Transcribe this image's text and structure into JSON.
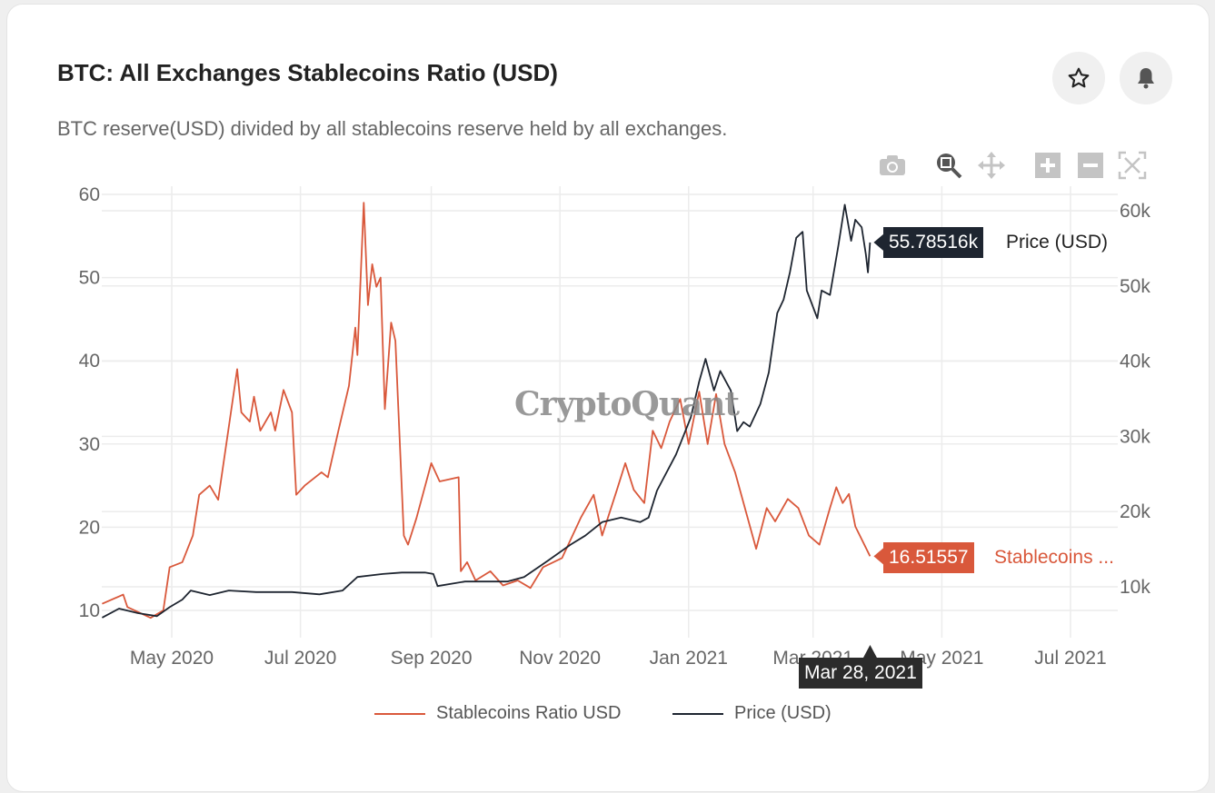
{
  "header": {
    "title": "BTC: All Exchanges Stablecoins Ratio (USD)",
    "subtitle": "BTC reserve(USD) divided by all stablecoins reserve held by all exchanges.",
    "favorite_icon": "star-icon",
    "alert_icon": "bell-icon"
  },
  "toolbar": {
    "items": [
      "camera-icon",
      "zoom-icon",
      "pan-icon",
      "zoom-in-icon",
      "zoom-out-icon",
      "autoscale-icon"
    ],
    "active": "zoom-icon"
  },
  "watermark": "CryptoQuant",
  "hover": {
    "date_label": "Mar 28, 2021",
    "price_value": "55.78516k",
    "price_name": "Price (USD)",
    "ratio_value": "16.51557",
    "ratio_name": "Stablecoins ..."
  },
  "legend": {
    "items": [
      {
        "label": "Stablecoins Ratio USD",
        "color": "#d9583b"
      },
      {
        "label": "Price (USD)",
        "color": "#1e2530"
      }
    ]
  },
  "chart_data": {
    "type": "line",
    "grid": true,
    "legend_position": "bottom",
    "x_ticks": [
      {
        "date": "2020-05-01",
        "label": "May 2020"
      },
      {
        "date": "2020-07-01",
        "label": "Jul 2020"
      },
      {
        "date": "2020-09-01",
        "label": "Sep 2020"
      },
      {
        "date": "2020-11-01",
        "label": "Nov 2020"
      },
      {
        "date": "2021-01-01",
        "label": "Jan 2021"
      },
      {
        "date": "2021-03-01",
        "label": "Mar 2021"
      },
      {
        "date": "2021-05-01",
        "label": "May 2021"
      },
      {
        "date": "2021-07-01",
        "label": "Jul 2021"
      }
    ],
    "y_left": {
      "ticks": [
        10,
        20,
        30,
        40,
        50,
        60
      ],
      "labels": [
        "10",
        "20",
        "30",
        "40",
        "50",
        "60"
      ]
    },
    "y_right": {
      "ticks": [
        10000,
        20000,
        30000,
        40000,
        50000,
        60000
      ],
      "labels": [
        "10k",
        "20k",
        "30k",
        "40k",
        "50k",
        "60k"
      ]
    },
    "series": [
      {
        "name": "Stablecoins Ratio USD",
        "axis": "left",
        "color": "#d9583b",
        "points": [
          [
            "2020-03-29",
            10.8
          ],
          [
            "2020-04-08",
            11.9
          ],
          [
            "2020-04-10",
            10.4
          ],
          [
            "2020-04-21",
            9.1
          ],
          [
            "2020-04-27",
            10.0
          ],
          [
            "2020-04-30",
            15.2
          ],
          [
            "2020-05-06",
            15.8
          ],
          [
            "2020-05-11",
            19.0
          ],
          [
            "2020-05-14",
            23.9
          ],
          [
            "2020-05-19",
            25.0
          ],
          [
            "2020-05-23",
            23.3
          ],
          [
            "2020-05-28",
            32.0
          ],
          [
            "2020-06-01",
            39.0
          ],
          [
            "2020-06-03",
            33.8
          ],
          [
            "2020-06-07",
            32.7
          ],
          [
            "2020-06-09",
            35.7
          ],
          [
            "2020-06-12",
            31.6
          ],
          [
            "2020-06-17",
            33.8
          ],
          [
            "2020-06-19",
            31.6
          ],
          [
            "2020-06-23",
            36.5
          ],
          [
            "2020-06-27",
            33.8
          ],
          [
            "2020-06-29",
            23.9
          ],
          [
            "2020-07-03",
            25.0
          ],
          [
            "2020-07-11",
            26.6
          ],
          [
            "2020-07-14",
            26.0
          ],
          [
            "2020-07-19",
            31.6
          ],
          [
            "2020-07-24",
            37.0
          ],
          [
            "2020-07-27",
            44.0
          ],
          [
            "2020-07-28",
            40.7
          ],
          [
            "2020-07-31",
            59.0
          ],
          [
            "2020-08-02",
            46.7
          ],
          [
            "2020-08-04",
            51.6
          ],
          [
            "2020-08-06",
            48.9
          ],
          [
            "2020-08-08",
            50.0
          ],
          [
            "2020-08-10",
            34.2
          ],
          [
            "2020-08-13",
            44.6
          ],
          [
            "2020-08-15",
            42.4
          ],
          [
            "2020-08-19",
            19.0
          ],
          [
            "2020-08-21",
            17.9
          ],
          [
            "2020-08-25",
            21.1
          ],
          [
            "2020-09-01",
            27.7
          ],
          [
            "2020-09-05",
            25.5
          ],
          [
            "2020-09-14",
            26.0
          ],
          [
            "2020-09-15",
            14.7
          ],
          [
            "2020-09-18",
            15.8
          ],
          [
            "2020-09-22",
            13.6
          ],
          [
            "2020-09-29",
            14.7
          ],
          [
            "2020-10-05",
            13.0
          ],
          [
            "2020-10-12",
            13.6
          ],
          [
            "2020-10-18",
            12.7
          ],
          [
            "2020-10-24",
            15.2
          ],
          [
            "2020-11-02",
            16.3
          ],
          [
            "2020-11-11",
            21.2
          ],
          [
            "2020-11-17",
            23.9
          ],
          [
            "2020-11-21",
            19.0
          ],
          [
            "2020-11-28",
            24.5
          ],
          [
            "2020-12-02",
            27.7
          ],
          [
            "2020-12-06",
            24.5
          ],
          [
            "2020-12-11",
            22.9
          ],
          [
            "2020-12-15",
            31.6
          ],
          [
            "2020-12-19",
            29.5
          ],
          [
            "2020-12-23",
            32.7
          ],
          [
            "2020-12-28",
            35.4
          ],
          [
            "2021-01-01",
            30.0
          ],
          [
            "2021-01-06",
            36.3
          ],
          [
            "2021-01-10",
            30.0
          ],
          [
            "2021-01-14",
            36.0
          ],
          [
            "2021-01-18",
            30.0
          ],
          [
            "2021-01-23",
            26.6
          ],
          [
            "2021-01-27",
            22.9
          ],
          [
            "2021-02-02",
            17.4
          ],
          [
            "2021-02-07",
            22.3
          ],
          [
            "2021-02-11",
            20.7
          ],
          [
            "2021-02-17",
            23.4
          ],
          [
            "2021-02-22",
            22.3
          ],
          [
            "2021-02-27",
            19.0
          ],
          [
            "2021-03-04",
            17.9
          ],
          [
            "2021-03-09",
            22.3
          ],
          [
            "2021-03-12",
            24.8
          ],
          [
            "2021-03-15",
            22.9
          ],
          [
            "2021-03-18",
            24.0
          ],
          [
            "2021-03-21",
            20.1
          ],
          [
            "2021-03-28",
            16.51557
          ]
        ]
      },
      {
        "name": "Price (USD)",
        "axis": "right",
        "color": "#1e2530",
        "points": [
          [
            "2020-03-29",
            5900
          ],
          [
            "2020-04-06",
            7100
          ],
          [
            "2020-04-15",
            6500
          ],
          [
            "2020-04-24",
            6100
          ],
          [
            "2020-04-30",
            7300
          ],
          [
            "2020-05-06",
            8300
          ],
          [
            "2020-05-10",
            9500
          ],
          [
            "2020-05-19",
            8900
          ],
          [
            "2020-05-28",
            9500
          ],
          [
            "2020-06-10",
            9300
          ],
          [
            "2020-06-27",
            9300
          ],
          [
            "2020-07-10",
            9000
          ],
          [
            "2020-07-21",
            9500
          ],
          [
            "2020-07-28",
            11300
          ],
          [
            "2020-08-09",
            11700
          ],
          [
            "2020-08-18",
            11900
          ],
          [
            "2020-08-29",
            11900
          ],
          [
            "2020-09-02",
            11700
          ],
          [
            "2020-09-04",
            10100
          ],
          [
            "2020-09-17",
            10700
          ],
          [
            "2020-09-26",
            10700
          ],
          [
            "2020-10-07",
            10700
          ],
          [
            "2020-10-15",
            11300
          ],
          [
            "2020-10-26",
            13400
          ],
          [
            "2020-11-06",
            15600
          ],
          [
            "2020-11-13",
            16800
          ],
          [
            "2020-11-21",
            18600
          ],
          [
            "2020-11-30",
            19200
          ],
          [
            "2020-12-09",
            18600
          ],
          [
            "2020-12-13",
            19200
          ],
          [
            "2020-12-17",
            22800
          ],
          [
            "2020-12-26",
            27600
          ],
          [
            "2021-01-02",
            32500
          ],
          [
            "2021-01-06",
            37300
          ],
          [
            "2021-01-09",
            40300
          ],
          [
            "2021-01-13",
            36100
          ],
          [
            "2021-01-16",
            38700
          ],
          [
            "2021-01-21",
            36100
          ],
          [
            "2021-01-24",
            30700
          ],
          [
            "2021-01-27",
            31900
          ],
          [
            "2021-01-30",
            31300
          ],
          [
            "2021-02-04",
            34300
          ],
          [
            "2021-02-08",
            38500
          ],
          [
            "2021-02-12",
            46400
          ],
          [
            "2021-02-15",
            48200
          ],
          [
            "2021-02-18",
            51800
          ],
          [
            "2021-02-21",
            56400
          ],
          [
            "2021-02-24",
            57200
          ],
          [
            "2021-02-26",
            49400
          ],
          [
            "2021-03-03",
            45700
          ],
          [
            "2021-03-05",
            49400
          ],
          [
            "2021-03-09",
            48800
          ],
          [
            "2021-03-13",
            55400
          ],
          [
            "2021-03-16",
            60800
          ],
          [
            "2021-03-19",
            56000
          ],
          [
            "2021-03-21",
            58800
          ],
          [
            "2021-03-24",
            57800
          ],
          [
            "2021-03-26",
            54200
          ],
          [
            "2021-03-27",
            51800
          ],
          [
            "2021-03-28",
            55785.16
          ]
        ]
      }
    ]
  }
}
